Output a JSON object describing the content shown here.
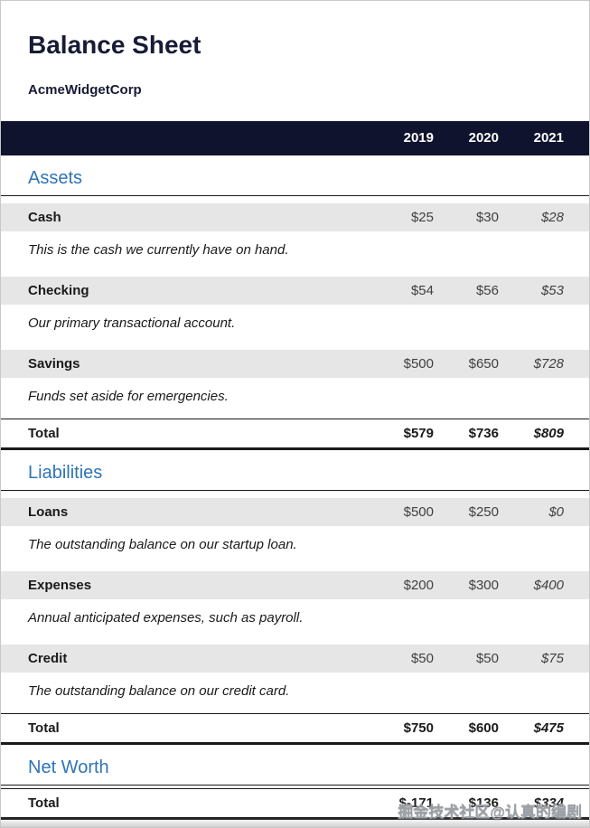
{
  "page": {
    "title": "Balance Sheet",
    "subtitle": "AcmeWidgetCorp"
  },
  "table": {
    "years": [
      "2019",
      "2020",
      "2021"
    ],
    "sections": [
      {
        "name": "Assets",
        "rows": [
          {
            "label": "Cash",
            "values": [
              "$25",
              "$30",
              "$28"
            ],
            "note": "This is the cash we currently have on hand."
          },
          {
            "label": "Checking",
            "values": [
              "$54",
              "$56",
              "$53"
            ],
            "note": "Our primary transactional account."
          },
          {
            "label": "Savings",
            "values": [
              "$500",
              "$650",
              "$728"
            ],
            "note": "Funds set aside for emergencies."
          }
        ],
        "total": {
          "label": "Total",
          "values": [
            "$579",
            "$736",
            "$809"
          ]
        }
      },
      {
        "name": "Liabilities",
        "rows": [
          {
            "label": "Loans",
            "values": [
              "$500",
              "$250",
              "$0"
            ],
            "note": "The outstanding balance on our startup loan."
          },
          {
            "label": "Expenses",
            "values": [
              "$200",
              "$300",
              "$400"
            ],
            "note": "Annual anticipated expenses, such as payroll."
          },
          {
            "label": "Credit",
            "values": [
              "$50",
              "$50",
              "$75"
            ],
            "note": "The outstanding balance on our credit card."
          }
        ],
        "total": {
          "label": "Total",
          "values": [
            "$750",
            "$600",
            "$475"
          ]
        }
      },
      {
        "name": "Net Worth",
        "rows": [],
        "total": {
          "label": "Total",
          "values": [
            "$-171",
            "$136",
            "$334"
          ]
        }
      }
    ]
  },
  "watermark": "掘金技术社区@认真的编剧",
  "colors": {
    "header_band": "#10132e",
    "section_heading": "#2e74b5",
    "row_stripe": "#e6e6e6",
    "title_color": "#171b36",
    "rule_color": "#1a1a1a",
    "value_color": "#404040",
    "watermark_color": "#9aa0a8"
  }
}
